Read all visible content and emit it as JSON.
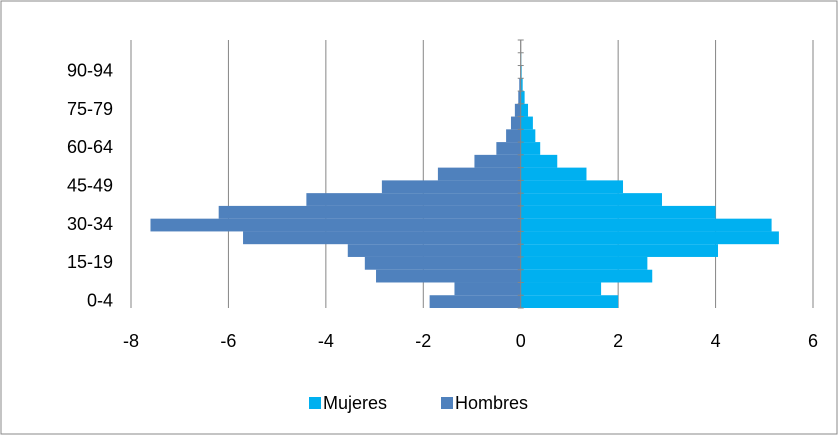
{
  "chart_data": {
    "type": "bar",
    "orientation": "horizontal",
    "stacked": true,
    "categories": [
      "0-4",
      null,
      null,
      "15-19",
      null,
      null,
      "30-34",
      null,
      null,
      "45-49",
      null,
      null,
      "60-64",
      null,
      null,
      "75-79",
      null,
      null,
      "90-94",
      null,
      null
    ],
    "series": [
      {
        "name": "Mujeres",
        "color": "#00b0f0",
        "values": [
          2.0,
          1.65,
          2.7,
          2.6,
          4.05,
          5.3,
          5.15,
          4.0,
          2.9,
          2.1,
          1.35,
          0.75,
          0.4,
          0.3,
          0.25,
          0.15,
          0.08,
          0.04,
          0.02,
          0.01,
          0
        ]
      },
      {
        "name": "Hombres",
        "color": "#4f81bd",
        "values": [
          -1.87,
          -1.36,
          -2.97,
          -3.2,
          -3.55,
          -5.7,
          -7.6,
          -6.2,
          -4.4,
          -2.85,
          -1.7,
          -0.95,
          -0.5,
          -0.3,
          -0.2,
          -0.12,
          -0.05,
          -0.03,
          -0.01,
          0,
          0
        ]
      }
    ],
    "xlim": [
      -8,
      6
    ],
    "xticks": [
      -8,
      -6,
      -4,
      -2,
      0,
      2,
      4,
      6
    ],
    "grid": true,
    "legend": "bottom"
  }
}
